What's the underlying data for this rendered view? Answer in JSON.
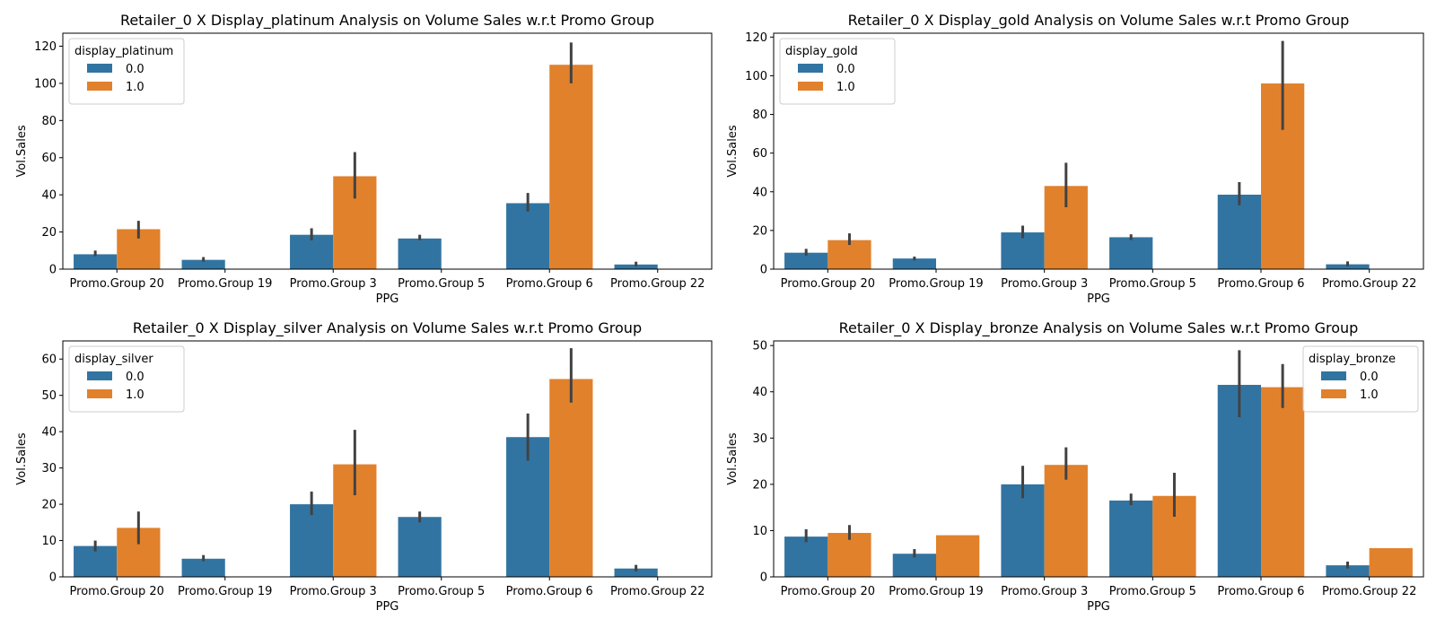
{
  "colors": {
    "series_0": "#3274a1",
    "series_1": "#e1812c",
    "errorbar": "#424242",
    "axis": "#000000"
  },
  "chart_data": [
    {
      "type": "bar",
      "title": "Retailer_0 X Display_platinum Analysis on Volume Sales w.r.t Promo Group",
      "xlabel": "PPG",
      "ylabel": "Vol.Sales",
      "ylim": [
        0,
        127
      ],
      "yticks": [
        "0",
        "20",
        "40",
        "60",
        "80",
        "100",
        "120"
      ],
      "categories": [
        "Promo.Group 20",
        "Promo.Group 19",
        "Promo.Group 3",
        "Promo.Group 5",
        "Promo.Group 6",
        "Promo.Group 22"
      ],
      "legend": {
        "title": "display_platinum",
        "position": "top-left"
      },
      "series": [
        {
          "name": "0.0",
          "values": [
            8.0,
            5.0,
            18.5,
            16.5,
            35.5,
            2.5
          ],
          "err_low": [
            7.0,
            4.0,
            15.5,
            15.5,
            31.0,
            1.5
          ],
          "err_high": [
            10.0,
            6.5,
            22.0,
            18.5,
            41.0,
            4.0
          ]
        },
        {
          "name": "1.0",
          "values": [
            21.5,
            null,
            50.0,
            null,
            110.0,
            null
          ],
          "err_low": [
            16.5,
            null,
            38.0,
            null,
            100.0,
            null
          ],
          "err_high": [
            26.0,
            null,
            63.0,
            null,
            122.0,
            null
          ]
        }
      ]
    },
    {
      "type": "bar",
      "title": "Retailer_0 X Display_gold Analysis on Volume Sales w.r.t Promo Group",
      "xlabel": "PPG",
      "ylabel": "Vol.Sales",
      "ylim": [
        0,
        122
      ],
      "yticks": [
        "0",
        "20",
        "40",
        "60",
        "80",
        "100",
        "120"
      ],
      "categories": [
        "Promo.Group 20",
        "Promo.Group 19",
        "Promo.Group 3",
        "Promo.Group 5",
        "Promo.Group 6",
        "Promo.Group 22"
      ],
      "legend": {
        "title": "display_gold",
        "position": "top-left"
      },
      "series": [
        {
          "name": "0.0",
          "values": [
            8.5,
            5.5,
            19.0,
            16.5,
            38.5,
            2.5
          ],
          "err_low": [
            7.0,
            4.5,
            16.0,
            15.0,
            33.0,
            1.5
          ],
          "err_high": [
            10.5,
            6.5,
            22.5,
            18.0,
            45.0,
            4.0
          ]
        },
        {
          "name": "1.0",
          "values": [
            15.0,
            null,
            43.0,
            null,
            96.0,
            null
          ],
          "err_low": [
            12.5,
            null,
            32.0,
            null,
            72.0,
            null
          ],
          "err_high": [
            18.5,
            null,
            55.0,
            null,
            118.0,
            null
          ]
        }
      ]
    },
    {
      "type": "bar",
      "title": "Retailer_0 X Display_silver Analysis on Volume Sales w.r.t Promo Group",
      "xlabel": "PPG",
      "ylabel": "Vol.Sales",
      "ylim": [
        0,
        65
      ],
      "yticks": [
        "0",
        "10",
        "20",
        "30",
        "40",
        "50",
        "60"
      ],
      "categories": [
        "Promo.Group 20",
        "Promo.Group 19",
        "Promo.Group 3",
        "Promo.Group 5",
        "Promo.Group 6",
        "Promo.Group 22"
      ],
      "legend": {
        "title": "display_silver",
        "position": "top-left"
      },
      "series": [
        {
          "name": "0.0",
          "values": [
            8.5,
            5.0,
            20.0,
            16.5,
            38.5,
            2.3
          ],
          "err_low": [
            7.0,
            4.3,
            17.0,
            15.0,
            32.0,
            1.5
          ],
          "err_high": [
            10.0,
            6.0,
            23.5,
            18.0,
            45.0,
            3.3
          ]
        },
        {
          "name": "1.0",
          "values": [
            13.5,
            null,
            31.0,
            null,
            54.5,
            null
          ],
          "err_low": [
            9.0,
            null,
            22.5,
            null,
            48.0,
            null
          ],
          "err_high": [
            18.0,
            null,
            40.5,
            null,
            63.0,
            null
          ]
        }
      ]
    },
    {
      "type": "bar",
      "title": "Retailer_0 X Display_bronze Analysis on Volume Sales w.r.t Promo Group",
      "xlabel": "PPG",
      "ylabel": "Vol.Sales",
      "ylim": [
        0,
        51
      ],
      "yticks": [
        "0",
        "10",
        "20",
        "30",
        "40",
        "50"
      ],
      "categories": [
        "Promo.Group 20",
        "Promo.Group 19",
        "Promo.Group 3",
        "Promo.Group 5",
        "Promo.Group 6",
        "Promo.Group 22"
      ],
      "legend": {
        "title": "display_bronze",
        "position": "top-right"
      },
      "series": [
        {
          "name": "0.0",
          "values": [
            8.7,
            5.0,
            20.0,
            16.5,
            41.5,
            2.5
          ],
          "err_low": [
            7.5,
            4.2,
            17.0,
            15.5,
            34.5,
            1.8
          ],
          "err_high": [
            10.3,
            6.0,
            24.0,
            18.0,
            49.0,
            3.3
          ]
        },
        {
          "name": "1.0",
          "values": [
            9.5,
            9.0,
            24.2,
            17.5,
            41.0,
            6.2
          ],
          "err_low": [
            8.0,
            null,
            21.0,
            13.0,
            36.5,
            null
          ],
          "err_high": [
            11.2,
            null,
            28.0,
            22.5,
            46.0,
            null
          ]
        }
      ]
    }
  ]
}
